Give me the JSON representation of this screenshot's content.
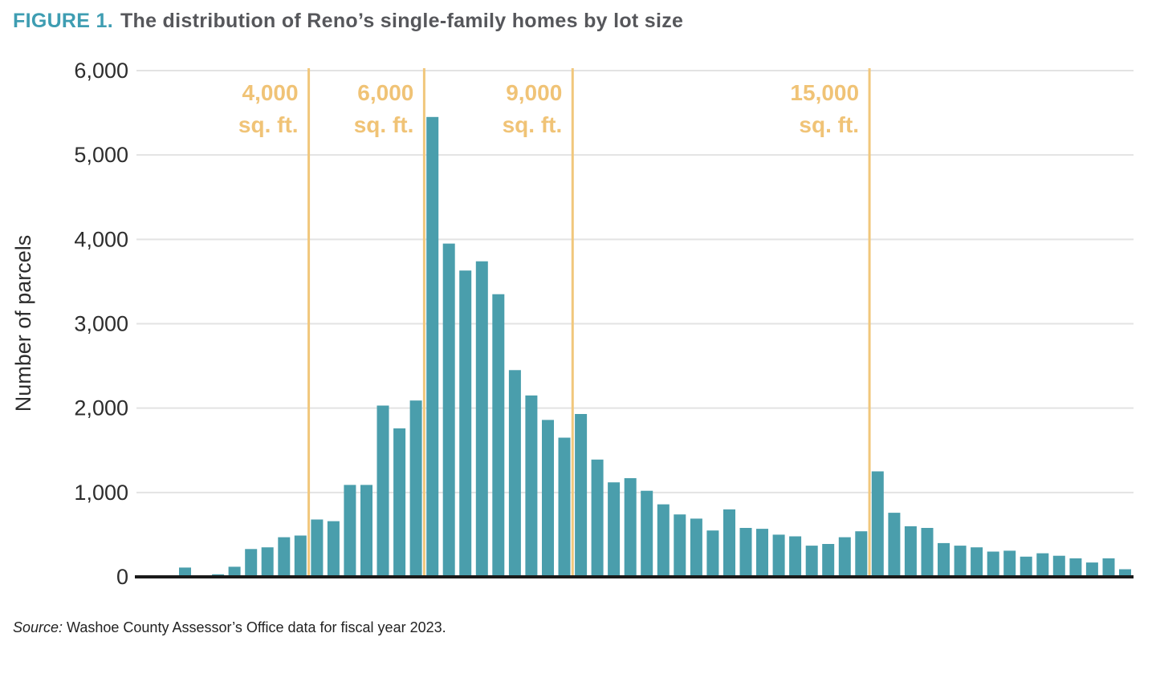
{
  "title": {
    "figure_label": "FIGURE 1.",
    "text": "The distribution of Reno’s single-family homes by lot size"
  },
  "source": {
    "prefix": "Source:",
    "text": "Washoe County Assessor’s Office data for fiscal year 2023."
  },
  "colors": {
    "accent_teal": "#3E9DB2",
    "title_gray": "#56575B",
    "bar_teal": "#4A9EAC",
    "reference_yellow": "#F1C77C",
    "reference_label_yellow": "#F0C376",
    "axis_text": "#2D2D2D",
    "gridline": "#E3E3E3",
    "axis_line": "#1A1A1A"
  },
  "chart_data": {
    "type": "bar",
    "title": "FIGURE 1. The distribution of Reno’s single-family homes by lot size",
    "xlabel": "",
    "ylabel": "Number of parcels",
    "ylim": [
      0,
      6000
    ],
    "grid": "horizontal",
    "legend": "none",
    "yticks": [
      {
        "value": 0,
        "label": "0"
      },
      {
        "value": 1000,
        "label": "1,000"
      },
      {
        "value": 2000,
        "label": "2,000"
      },
      {
        "value": 3000,
        "label": "3,000"
      },
      {
        "value": 4000,
        "label": "4,000"
      },
      {
        "value": 5000,
        "label": "5,000"
      },
      {
        "value": 6000,
        "label": "6,000"
      }
    ],
    "values": [
      110,
      0,
      30,
      120,
      330,
      350,
      470,
      490,
      680,
      660,
      1090,
      1090,
      2030,
      1760,
      2090,
      5450,
      3950,
      3630,
      3740,
      3350,
      2450,
      2150,
      1860,
      1650,
      1930,
      1390,
      1120,
      1170,
      1020,
      860,
      740,
      690,
      550,
      800,
      580,
      570,
      500,
      480,
      370,
      390,
      470,
      540,
      1250,
      760,
      600,
      580,
      400,
      370,
      350,
      300,
      310,
      240,
      280,
      250,
      220,
      170,
      220,
      90
    ],
    "bar_color": "#4A9EAC",
    "reference_line_color": "#F1C77C",
    "reference_lines": [
      {
        "label": "4,000 sq. ft.",
        "label_lines": [
          "4,000",
          "sq. ft."
        ],
        "after_bar_index": 8
      },
      {
        "label": "6,000 sq. ft.",
        "label_lines": [
          "6,000",
          "sq. ft."
        ],
        "after_bar_index": 15
      },
      {
        "label": "9,000 sq. ft.",
        "label_lines": [
          "9,000",
          "sq. ft."
        ],
        "after_bar_index": 24
      },
      {
        "label": "15,000 sq. ft.",
        "label_lines": [
          "15,000",
          "sq. ft."
        ],
        "after_bar_index": 42
      }
    ]
  }
}
